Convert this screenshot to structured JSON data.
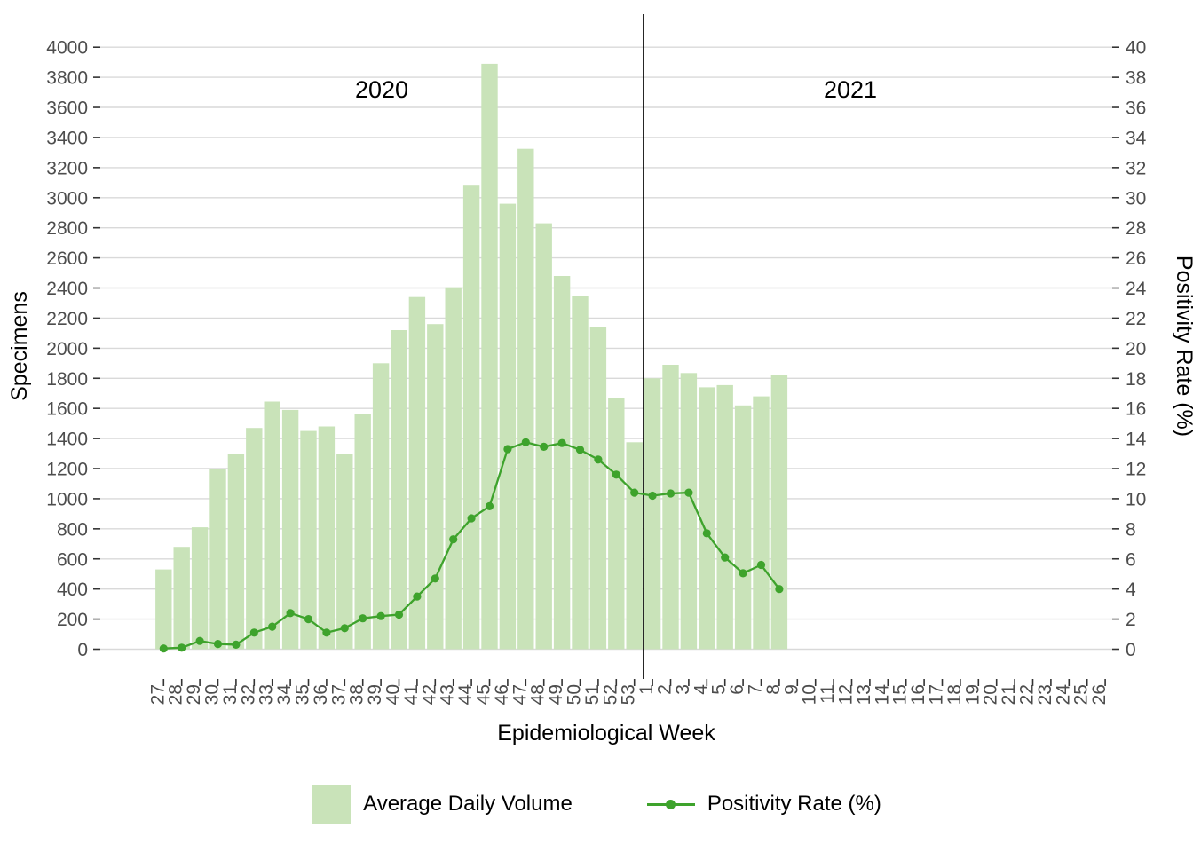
{
  "annotations": {
    "year_left": "2020",
    "year_right": "2021"
  },
  "axes": {
    "y_left": {
      "title": "Specimens",
      "min": 0,
      "max": 4000,
      "step": 200
    },
    "y_right": {
      "title": "Positivity Rate (%)",
      "min": 0,
      "max": 40,
      "step": 2
    },
    "x": {
      "title": "Epidemiological Week"
    }
  },
  "legend": {
    "bar_label": "Average Daily Volume",
    "line_label": "Positivity Rate (%)"
  },
  "colors": {
    "bar": "#c9e3b9",
    "line": "#3ea32c",
    "grid": "#d9d9d9",
    "axis_text": "#4d4d4d",
    "tick": "#333333",
    "divider": "#000000"
  },
  "chart_data": {
    "type": "bar+line combo (dual axis)",
    "title": "",
    "xlabel": "Epidemiological Week",
    "ylabel_left": "Specimens",
    "ylabel_right": "Positivity Rate (%)",
    "ylim_left": [
      0,
      4000
    ],
    "ylim_right": [
      0,
      40
    ],
    "grid": "horizontal major gridlines every 200 specimens / 2 percent",
    "legend_position": "bottom",
    "divider_between": [
      "53",
      "1"
    ],
    "x_labels": [
      "27",
      "28",
      "29",
      "30",
      "31",
      "32",
      "33",
      "34",
      "35",
      "36",
      "37",
      "38",
      "39",
      "40",
      "41",
      "42",
      "43",
      "44",
      "45",
      "46",
      "47",
      "48",
      "49",
      "50",
      "51",
      "52",
      "53",
      "1",
      "2",
      "3",
      "4",
      "5",
      "6",
      "7",
      "8",
      "9",
      "10",
      "11",
      "12",
      "13",
      "14",
      "15",
      "16",
      "17",
      "18",
      "19",
      "20",
      "21",
      "22",
      "23",
      "24",
      "25",
      "26"
    ],
    "series": [
      {
        "name": "Average Daily Volume",
        "type": "bar",
        "axis": "left",
        "values": [
          530,
          680,
          810,
          1200,
          1300,
          1470,
          1645,
          1590,
          1450,
          1480,
          1300,
          1560,
          1900,
          2120,
          2340,
          2160,
          2405,
          3080,
          3890,
          2960,
          3325,
          2830,
          2480,
          2350,
          2140,
          1670,
          1375,
          1800,
          1890,
          1835,
          1740,
          1755,
          1620,
          1680,
          1825,
          null,
          null,
          null,
          null,
          null,
          null,
          null,
          null,
          null,
          null,
          null,
          null,
          null,
          null,
          null,
          null,
          null,
          null
        ]
      },
      {
        "name": "Positivity Rate (%)",
        "type": "line",
        "axis": "right",
        "values": [
          0.05,
          0.1,
          0.55,
          0.35,
          0.3,
          1.1,
          1.5,
          2.4,
          2.0,
          1.1,
          1.4,
          2.05,
          2.2,
          2.3,
          3.5,
          4.7,
          7.3,
          8.7,
          9.5,
          13.3,
          13.75,
          13.45,
          13.7,
          13.25,
          12.6,
          11.6,
          10.4,
          10.2,
          10.35,
          10.4,
          7.7,
          6.1,
          5.05,
          5.6,
          4.0,
          null,
          null,
          null,
          null,
          null,
          null,
          null,
          null,
          null,
          null,
          null,
          null,
          null,
          null,
          null,
          null,
          null,
          null
        ]
      }
    ]
  }
}
